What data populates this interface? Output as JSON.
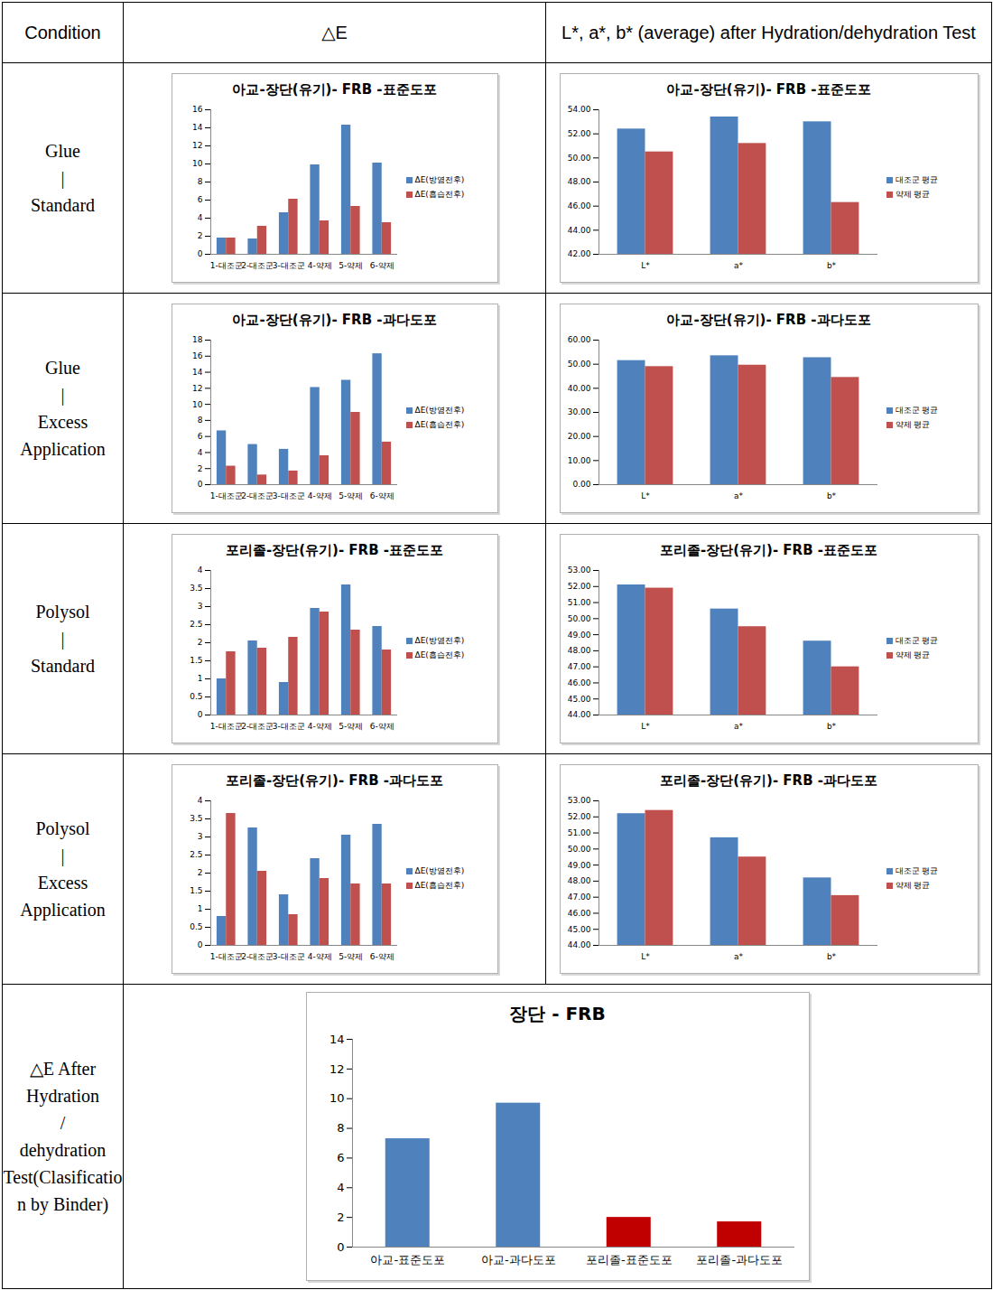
{
  "table": {
    "header": [
      "Condition",
      "△E",
      "L*, a*, b* (average) after Hydration/dehydration Test"
    ],
    "rows": [
      {
        "condition": [
          "Glue",
          "|",
          "Standard"
        ]
      },
      {
        "condition": [
          "Glue",
          "|",
          "Excess Application"
        ]
      },
      {
        "condition": [
          "Polysol",
          "|",
          "Standard"
        ]
      },
      {
        "condition": [
          "Polysol",
          "|",
          "Excess Application"
        ]
      },
      {
        "condition": [
          "△E After Hydration",
          "/",
          "dehydration Test(Clasification by Binder)"
        ]
      }
    ]
  },
  "chart_data": [
    {
      "type": "bar",
      "title": "아교-장단(유기)- FRB -표준도포",
      "legend": "right",
      "categories": [
        "1-대조군",
        "2-대조군",
        "3-대조군",
        "4-약제",
        "5-약제",
        "6-약제"
      ],
      "series": [
        {
          "name": "ΔE(방염전후)",
          "color": "#4f81bd",
          "values": [
            1.8,
            1.7,
            4.6,
            9.9,
            14.3,
            10.1
          ]
        },
        {
          "name": "ΔE(흡습전후)",
          "color": "#c0504d",
          "values": [
            1.8,
            3.1,
            6.1,
            3.7,
            5.3,
            3.5
          ]
        }
      ],
      "ylim": [
        0,
        16
      ],
      "yticks": [
        0,
        2,
        4,
        6,
        8,
        10,
        12,
        14,
        16
      ]
    },
    {
      "type": "bar",
      "title": "아교-장단(유기)- FRB -표준도포",
      "legend": "right",
      "categories": [
        "L*",
        "a*",
        "b*"
      ],
      "series": [
        {
          "name": "대조군 평균",
          "color": "#4f81bd",
          "values": [
            52.4,
            53.4,
            53.0
          ]
        },
        {
          "name": "약제 평균",
          "color": "#c0504d",
          "values": [
            50.5,
            51.2,
            46.3
          ]
        }
      ],
      "ylim": [
        42,
        54
      ],
      "yticks": [
        {
          "value": 42,
          "label": "42.00"
        },
        {
          "value": 44,
          "label": "44.00"
        },
        {
          "value": 46,
          "label": "46.00"
        },
        {
          "value": 48,
          "label": "48.00"
        },
        {
          "value": 50,
          "label": "50.00"
        },
        {
          "value": 52,
          "label": "52.00"
        },
        {
          "value": 54,
          "label": "54.00"
        }
      ]
    },
    {
      "type": "bar",
      "title": "아교-장단(유기)- FRB -과다도포",
      "legend": "right",
      "categories": [
        "1-대조군",
        "2-대조군",
        "3-대조군",
        "4-약제",
        "5-약제",
        "6-약제"
      ],
      "series": [
        {
          "name": "ΔE(방염전후)",
          "color": "#4f81bd",
          "values": [
            6.7,
            5.0,
            4.4,
            12.1,
            13.0,
            16.3
          ]
        },
        {
          "name": "ΔE(흡습전후)",
          "color": "#c0504d",
          "values": [
            2.3,
            1.2,
            1.7,
            3.6,
            9.0,
            5.3
          ]
        }
      ],
      "ylim": [
        0,
        18
      ],
      "yticks": [
        0,
        2,
        4,
        6,
        8,
        10,
        12,
        14,
        16,
        18
      ]
    },
    {
      "type": "bar",
      "title": "아교-장단(유기)- FRB -과다도포",
      "legend": "right",
      "categories": [
        "L*",
        "a*",
        "b*"
      ],
      "series": [
        {
          "name": "대조군 평균",
          "color": "#4f81bd",
          "values": [
            51.5,
            53.5,
            52.7
          ]
        },
        {
          "name": "약제 평균",
          "color": "#c0504d",
          "values": [
            49.0,
            49.6,
            44.5
          ]
        }
      ],
      "ylim": [
        0,
        60
      ],
      "yticks": [
        {
          "value": 0,
          "label": "0.00"
        },
        {
          "value": 10,
          "label": "10.00"
        },
        {
          "value": 20,
          "label": "20.00"
        },
        {
          "value": 30,
          "label": "30.00"
        },
        {
          "value": 40,
          "label": "40.00"
        },
        {
          "value": 50,
          "label": "50.00"
        },
        {
          "value": 60,
          "label": "60.00"
        }
      ]
    },
    {
      "type": "bar",
      "title": "포리졸-장단(유기)- FRB -표준도포",
      "legend": "right",
      "categories": [
        "1-대조군",
        "2-대조군",
        "3-대조군",
        "4-약제",
        "5-약제",
        "6-약제"
      ],
      "series": [
        {
          "name": "ΔE(방염전후)",
          "color": "#4f81bd",
          "values": [
            1.0,
            2.05,
            0.9,
            2.95,
            3.6,
            2.45
          ]
        },
        {
          "name": "ΔE(흡습전후)",
          "color": "#c0504d",
          "values": [
            1.75,
            1.85,
            2.15,
            2.85,
            2.35,
            1.8
          ]
        }
      ],
      "ylim": [
        0,
        4
      ],
      "yticks": [
        0,
        0.5,
        1,
        1.5,
        2,
        2.5,
        3,
        3.5,
        4
      ]
    },
    {
      "type": "bar",
      "title": "포리졸-장단(유기)- FRB -표준도포",
      "legend": "right",
      "categories": [
        "L*",
        "a*",
        "b*"
      ],
      "series": [
        {
          "name": "대조군 평균",
          "color": "#4f81bd",
          "values": [
            52.1,
            50.6,
            48.6
          ]
        },
        {
          "name": "약제 평균",
          "color": "#c0504d",
          "values": [
            51.9,
            49.5,
            47.0
          ]
        }
      ],
      "ylim": [
        44,
        53
      ],
      "yticks": [
        {
          "value": 44,
          "label": "44.00"
        },
        {
          "value": 45,
          "label": "45.00"
        },
        {
          "value": 46,
          "label": "46.00"
        },
        {
          "value": 47,
          "label": "47.00"
        },
        {
          "value": 48,
          "label": "48.00"
        },
        {
          "value": 49,
          "label": "49.00"
        },
        {
          "value": 50,
          "label": "50.00"
        },
        {
          "value": 51,
          "label": "51.00"
        },
        {
          "value": 52,
          "label": "52.00"
        },
        {
          "value": 53,
          "label": "53.00"
        }
      ]
    },
    {
      "type": "bar",
      "title": "포리졸-장단(유기)- FRB -과다도포",
      "legend": "right",
      "categories": [
        "1-대조군",
        "2-대조군",
        "3-대조군",
        "4-약제",
        "5-약제",
        "6-약제"
      ],
      "series": [
        {
          "name": "ΔE(방염전후)",
          "color": "#4f81bd",
          "values": [
            0.8,
            3.25,
            1.4,
            2.4,
            3.05,
            3.35
          ]
        },
        {
          "name": "ΔE(흡습전후)",
          "color": "#c0504d",
          "values": [
            3.65,
            2.05,
            0.85,
            1.85,
            1.7,
            1.7
          ]
        }
      ],
      "ylim": [
        0,
        4
      ],
      "yticks": [
        0,
        0.5,
        1,
        1.5,
        2,
        2.5,
        3,
        3.5,
        4
      ]
    },
    {
      "type": "bar",
      "title": "포리졸-장단(유기)- FRB -과다도포",
      "legend": "right",
      "categories": [
        "L*",
        "a*",
        "b*"
      ],
      "series": [
        {
          "name": "대조군 평균",
          "color": "#4f81bd",
          "values": [
            52.2,
            50.7,
            48.2
          ]
        },
        {
          "name": "약제 평균",
          "color": "#c0504d",
          "values": [
            52.4,
            49.5,
            47.1
          ]
        }
      ],
      "ylim": [
        44,
        53
      ],
      "yticks": [
        {
          "value": 44,
          "label": "44.00"
        },
        {
          "value": 45,
          "label": "45.00"
        },
        {
          "value": 46,
          "label": "46.00"
        },
        {
          "value": 47,
          "label": "47.00"
        },
        {
          "value": 48,
          "label": "48.00"
        },
        {
          "value": 49,
          "label": "49.00"
        },
        {
          "value": 50,
          "label": "50.00"
        },
        {
          "value": 51,
          "label": "51.00"
        },
        {
          "value": 52,
          "label": "52.00"
        },
        {
          "value": 53,
          "label": "53.00"
        }
      ]
    },
    {
      "type": "bar",
      "title": "장단 - FRB",
      "categories": [
        "아교-표준도포",
        "아교-과다도포",
        "포리졸-표준도포",
        "포리졸-과다도포"
      ],
      "values": [
        7.3,
        9.7,
        2.0,
        1.7
      ],
      "colors": [
        "#4f81bd",
        "#4f81bd",
        "#c00000",
        "#c00000"
      ],
      "ylim": [
        0,
        14
      ],
      "yticks": [
        0,
        2,
        4,
        6,
        8,
        10,
        12,
        14
      ]
    }
  ]
}
